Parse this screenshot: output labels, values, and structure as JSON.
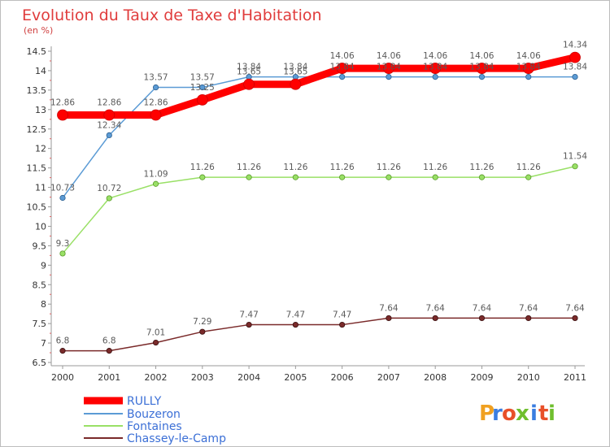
{
  "chart_data": {
    "type": "line",
    "title": "Evolution du Taux de Taxe d'Habitation",
    "subtitle": "(en %)",
    "xlabel": "",
    "ylabel": "(en %)",
    "x": [
      "2000",
      "2001",
      "2002",
      "2003",
      "2004",
      "2005",
      "2006",
      "2007",
      "2008",
      "2009",
      "2010",
      "2011"
    ],
    "ylim": [
      6.5,
      14.5
    ],
    "yticks": [
      "6.5",
      "7",
      "7.5",
      "8",
      "8.5",
      "9",
      "9.5",
      "10",
      "10.5",
      "11",
      "11.5",
      "12",
      "12.5",
      "13",
      "13.5",
      "14",
      "14.5"
    ],
    "grid": false,
    "legend_position": "bottom-left",
    "series": [
      {
        "name": "RULLY",
        "color": "#ff0000",
        "values": [
          12.86,
          12.86,
          12.86,
          13.25,
          13.65,
          13.65,
          14.06,
          14.06,
          14.06,
          14.06,
          14.06,
          14.34
        ],
        "labels": [
          "12.86",
          "12.86",
          "12.86",
          "13.25",
          "13.65",
          "13.65",
          "14.06",
          "14.06",
          "14.06",
          "14.06",
          "14.06",
          "14.34"
        ]
      },
      {
        "name": "Bouzeron",
        "color": "#5b9bd5",
        "values": [
          10.73,
          12.34,
          13.57,
          13.57,
          13.84,
          13.84,
          13.84,
          13.84,
          13.84,
          13.84,
          13.84,
          13.84
        ],
        "labels": [
          "10.73",
          "12.34",
          "13.57",
          "13.57",
          "13.84",
          "13.84",
          "13.84",
          "13.84",
          "13.84",
          "13.84",
          "13.84",
          "13.84"
        ]
      },
      {
        "name": "Fontaines",
        "color": "#99e066",
        "values": [
          9.3,
          10.72,
          11.09,
          11.26,
          11.26,
          11.26,
          11.26,
          11.26,
          11.26,
          11.26,
          11.26,
          11.54
        ],
        "labels": [
          "9.3",
          "10.72",
          "11.09",
          "11.26",
          "11.26",
          "11.26",
          "11.26",
          "11.26",
          "11.26",
          "11.26",
          "11.26",
          "11.54"
        ]
      },
      {
        "name": "Chassey-le-Camp",
        "color": "#7a2a2a",
        "values": [
          6.8,
          6.8,
          7.01,
          7.29,
          7.47,
          7.47,
          7.47,
          7.64,
          7.64,
          7.64,
          7.64,
          7.64
        ],
        "labels": [
          "6.8",
          "6.8",
          "7.01",
          "7.29",
          "7.47",
          "7.47",
          "7.47",
          "7.64",
          "7.64",
          "7.64",
          "7.64",
          "7.64"
        ]
      }
    ]
  },
  "logo": {
    "text": "Proxiti",
    "letters": [
      "P",
      "r",
      "o",
      "x",
      "i",
      "t",
      "i"
    ],
    "colors": [
      "#f0a020",
      "#3a7de0",
      "#e8502a",
      "#6fbf2e",
      "#3a7de0",
      "#e8502a",
      "#6fbf2e"
    ]
  }
}
